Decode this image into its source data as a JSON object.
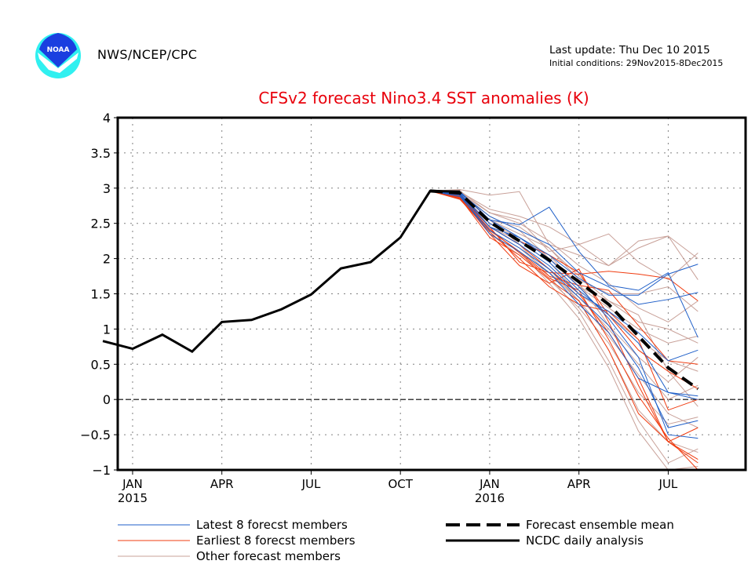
{
  "header": {
    "organization": "NWS/NCEP/CPC",
    "logo_text": "NOAA",
    "last_update": "Last update: Thu Dec 10 2015",
    "initial_conditions": "Initial conditions: 29Nov2015-8Dec2015"
  },
  "colors": {
    "title": "#e8000b",
    "latest": "#1f5fc8",
    "earliest": "#f03c10",
    "other": "#c8a098",
    "observed": "#000000",
    "mean": "#000000",
    "logo_dark": "#1a3fe0",
    "logo_light": "#30f0f0"
  },
  "chart_data": {
    "type": "line",
    "title": "CFSv2 forecast Nino3.4 SST anomalies (K)",
    "xlabel": "",
    "ylabel": "",
    "ylim": [
      -1,
      4
    ],
    "xlim_months": [
      -0.5,
      20.6
    ],
    "grid": true,
    "yticks": [
      -1,
      -0.5,
      0,
      0.5,
      1,
      1.5,
      2,
      2.5,
      3,
      3.5,
      4
    ],
    "ytick_labels": [
      "−1",
      "−0.5",
      "0",
      "0.5",
      "1",
      "1.5",
      "2",
      "2.5",
      "3",
      "3.5",
      "4"
    ],
    "xticks": [
      {
        "month": 0,
        "label": "JAN",
        "year": "2015"
      },
      {
        "month": 3,
        "label": "APR",
        "year": ""
      },
      {
        "month": 6,
        "label": "JUL",
        "year": ""
      },
      {
        "month": 9,
        "label": "OCT",
        "year": ""
      },
      {
        "month": 12,
        "label": "JAN",
        "year": "2016"
      },
      {
        "month": 15,
        "label": "APR",
        "year": ""
      },
      {
        "month": 18,
        "label": "JUL",
        "year": ""
      }
    ],
    "observed": {
      "name": "NCDC daily analysis",
      "x_months": [
        -1,
        0,
        1,
        2,
        3,
        4,
        5,
        6,
        7,
        8,
        9,
        10,
        11
      ],
      "values": [
        0.83,
        0.72,
        0.92,
        0.68,
        1.1,
        1.13,
        1.28,
        1.49,
        1.86,
        1.95,
        2.3,
        2.96,
        2.95
      ]
    },
    "ensemble_mean": {
      "name": "Forecast ensemble mean",
      "x_months": [
        10,
        11,
        12,
        13,
        14,
        15,
        16,
        17,
        18,
        19
      ],
      "values": [
        2.96,
        2.93,
        2.52,
        2.25,
        1.98,
        1.67,
        1.35,
        0.9,
        0.45,
        0.15
      ]
    },
    "member_x_months": [
      10,
      11,
      12,
      13,
      14,
      15,
      16,
      17,
      18,
      19
    ],
    "latest_members": {
      "name": "Latest 8 forecst members",
      "series": [
        [
          2.96,
          2.95,
          2.55,
          2.48,
          2.73,
          2.1,
          1.62,
          1.55,
          1.8,
          0.88
        ],
        [
          2.96,
          2.93,
          2.6,
          2.4,
          2.2,
          1.8,
          1.6,
          1.35,
          1.42,
          1.52
        ],
        [
          2.96,
          2.9,
          2.45,
          2.3,
          2.05,
          1.72,
          1.48,
          1.48,
          1.78,
          1.92
        ],
        [
          2.96,
          2.92,
          2.5,
          2.25,
          1.95,
          1.55,
          1.2,
          0.8,
          0.1,
          0.05
        ],
        [
          2.96,
          2.88,
          2.4,
          2.15,
          1.85,
          1.45,
          1.05,
          0.45,
          -0.4,
          -0.3
        ],
        [
          2.96,
          2.95,
          2.55,
          2.3,
          2.0,
          1.6,
          1.15,
          0.6,
          -0.5,
          -0.55
        ],
        [
          2.96,
          2.9,
          2.35,
          2.1,
          1.8,
          1.35,
          0.95,
          0.3,
          0.1,
          0.0
        ],
        [
          2.96,
          2.92,
          2.45,
          2.2,
          1.9,
          1.5,
          1.25,
          0.95,
          0.55,
          0.7
        ]
      ]
    },
    "earliest_members": {
      "name": "Earliest 8 forecst members",
      "series": [
        [
          2.96,
          2.88,
          2.45,
          1.95,
          1.8,
          1.78,
          1.82,
          1.78,
          1.72,
          1.4
        ],
        [
          2.96,
          2.85,
          2.4,
          2.1,
          1.75,
          1.62,
          1.55,
          1.05,
          0.55,
          0.5
        ],
        [
          2.96,
          2.9,
          2.5,
          2.25,
          2.05,
          1.8,
          1.2,
          0.7,
          0.4,
          0.15
        ],
        [
          2.96,
          2.87,
          2.35,
          1.9,
          1.65,
          1.85,
          1.1,
          0.2,
          -0.6,
          -0.85
        ],
        [
          2.96,
          2.86,
          2.3,
          2.05,
          1.7,
          1.4,
          0.7,
          -0.2,
          -0.6,
          -0.9
        ],
        [
          2.96,
          2.89,
          2.45,
          2.2,
          1.85,
          1.5,
          0.95,
          0.3,
          -0.6,
          -0.4
        ],
        [
          2.96,
          2.84,
          2.38,
          2.0,
          1.6,
          1.35,
          1.25,
          0.85,
          -0.15,
          0.0
        ],
        [
          2.96,
          2.88,
          2.42,
          2.08,
          1.72,
          1.55,
          0.85,
          0.05,
          -0.55,
          -1.0
        ]
      ]
    },
    "other_members": {
      "name": "Other forecast members",
      "series": [
        [
          2.96,
          2.98,
          2.9,
          2.95,
          2.2,
          2.05,
          1.9,
          2.15,
          2.32,
          1.7
        ],
        [
          2.96,
          2.95,
          2.7,
          2.6,
          2.45,
          2.2,
          2.35,
          1.95,
          1.7,
          2.08
        ],
        [
          2.96,
          2.93,
          2.65,
          2.55,
          2.1,
          2.2,
          1.9,
          2.25,
          2.32,
          2.0
        ],
        [
          2.96,
          2.97,
          2.55,
          2.35,
          2.15,
          1.7,
          1.5,
          1.5,
          1.6,
          1.25
        ],
        [
          2.96,
          2.92,
          2.5,
          2.3,
          2.05,
          1.6,
          1.3,
          1.0,
          0.8,
          0.9
        ],
        [
          2.96,
          2.9,
          2.45,
          2.25,
          1.95,
          1.5,
          1.2,
          0.85,
          0.55,
          0.4
        ],
        [
          2.96,
          2.94,
          2.6,
          2.4,
          2.0,
          1.65,
          1.05,
          0.6,
          0.25,
          0.6
        ],
        [
          2.96,
          2.91,
          2.4,
          2.15,
          1.8,
          1.4,
          0.9,
          0.35,
          -0.2,
          -0.4
        ],
        [
          2.96,
          2.89,
          2.35,
          2.05,
          1.7,
          1.3,
          0.8,
          0.1,
          -0.35,
          -0.25
        ],
        [
          2.96,
          2.93,
          2.55,
          2.2,
          1.85,
          1.4,
          0.7,
          -0.15,
          -0.6,
          -0.75
        ],
        [
          2.96,
          2.95,
          2.45,
          2.2,
          1.75,
          1.25,
          0.55,
          -0.3,
          -0.9,
          -0.7
        ],
        [
          2.96,
          2.92,
          2.4,
          2.1,
          1.65,
          1.15,
          0.45,
          -0.45,
          -1.0,
          -0.95
        ],
        [
          2.96,
          2.9,
          2.5,
          2.3,
          2.0,
          1.6,
          1.4,
          1.1,
          1.0,
          0.8
        ],
        [
          2.96,
          2.96,
          2.65,
          2.5,
          2.25,
          1.9,
          1.65,
          1.3,
          1.1,
          1.4
        ],
        [
          2.96,
          2.88,
          2.35,
          2.1,
          1.8,
          1.45,
          1.0,
          0.5,
          0.0,
          0.2
        ],
        [
          2.96,
          2.94,
          2.55,
          2.45,
          2.15,
          1.75,
          1.4,
          1.2,
          0.4,
          -0.1
        ]
      ]
    },
    "legend": {
      "placement": "bottom",
      "entries": [
        {
          "key": "latest",
          "label": "Latest 8 forecst members",
          "style": "thin-line"
        },
        {
          "key": "earliest",
          "label": "Earliest 8 forecst members",
          "style": "thin-line"
        },
        {
          "key": "other",
          "label": "Other forecast members",
          "style": "thin-line"
        },
        {
          "key": "mean",
          "label": "Forecast ensemble mean",
          "style": "thick-dashed"
        },
        {
          "key": "observed",
          "label": "NCDC daily analysis",
          "style": "thick-solid"
        }
      ]
    }
  }
}
